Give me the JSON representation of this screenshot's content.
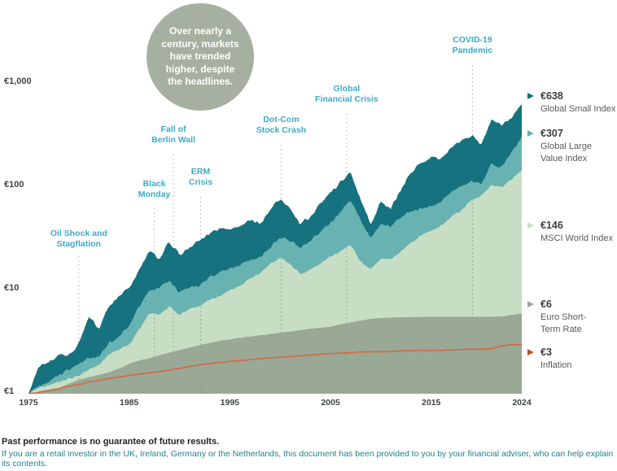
{
  "callout": {
    "text": "Over nearly a\ncentury, markets\nhave trended\nhigher, despite\nthe headlines.",
    "bg_color": "#a6b0a0"
  },
  "chart_data": {
    "type": "area",
    "scale": "log",
    "ylim": [
      1,
      1000
    ],
    "grid": false,
    "currency": "EUR",
    "years": {
      "start": 1975,
      "end": 2024
    },
    "y_ticks": [
      {
        "label": "€1",
        "value": 1
      },
      {
        "label": "€10",
        "value": 10
      },
      {
        "label": "€100",
        "value": 100
      },
      {
        "label": "€1,000",
        "value": 1000
      }
    ],
    "x_ticks": [
      {
        "label": "1975",
        "year": 1975
      },
      {
        "label": "1985",
        "year": 1985
      },
      {
        "label": "1995",
        "year": 1995
      },
      {
        "label": "2005",
        "year": 2005
      },
      {
        "label": "2015",
        "year": 2015
      },
      {
        "label": "2024",
        "year": 2024
      }
    ],
    "series": [
      {
        "name": "Global Small Index",
        "end_value": 638,
        "end_label": "€638",
        "kind": "area",
        "color": "#15727e",
        "values": [
          1.0,
          1.8,
          2.0,
          2.4,
          2.3,
          3.1,
          5.5,
          4.2,
          7.0,
          8.8,
          10.5,
          16,
          24,
          20,
          30,
          22,
          26,
          31,
          36,
          40,
          38,
          42,
          47,
          44,
          60,
          78,
          62,
          44,
          52,
          70,
          88,
          112,
          140,
          75,
          44,
          73,
          62,
          95,
          140,
          170,
          193,
          185,
          240,
          280,
          310,
          260,
          450,
          400,
          470,
          638
        ]
      },
      {
        "name": "Global Large Value Index",
        "end_value": 307,
        "end_label": "€307",
        "kind": "area",
        "color": "#68b2b2",
        "values": [
          1.0,
          1.2,
          1.3,
          1.5,
          1.7,
          1.95,
          2.2,
          2.3,
          3.1,
          3.6,
          4.5,
          7.0,
          10.0,
          10.5,
          12.6,
          9.5,
          10.5,
          11.2,
          13.5,
          15.2,
          16.0,
          17.5,
          20.0,
          21.0,
          26.0,
          33.0,
          30.0,
          26.0,
          30.0,
          37.0,
          45.0,
          58.0,
          75.0,
          48.0,
          33.0,
          44.0,
          42.0,
          51.0,
          58.0,
          62.0,
          65.0,
          73.0,
          90.0,
          103.0,
          115.0,
          108.0,
          168.0,
          158.0,
          215.0,
          307.0
        ]
      },
      {
        "name": "MSCI World Index",
        "end_value": 146,
        "end_label": "€146",
        "kind": "area",
        "color": "#c7dec5",
        "values": [
          1.0,
          1.15,
          1.2,
          1.3,
          1.4,
          1.5,
          1.7,
          1.9,
          2.4,
          2.7,
          3.0,
          4.2,
          6.0,
          5.8,
          7.0,
          5.8,
          6.6,
          7.0,
          8.2,
          8.8,
          10.0,
          11.0,
          13.0,
          14.5,
          18.0,
          21.0,
          18.0,
          14.5,
          16.0,
          18.0,
          21.0,
          24.0,
          28.0,
          19.0,
          16.0,
          20.0,
          20.0,
          24.0,
          29.0,
          34.0,
          38.0,
          42.0,
          52.0,
          60.0,
          75.0,
          83.0,
          105.0,
          100.0,
          120.0,
          146.0
        ]
      },
      {
        "name": "Euro Short-Term Rate",
        "end_value": 6,
        "end_label": "€6",
        "kind": "area",
        "color": "#9aa896",
        "values": [
          1.0,
          1.05,
          1.1,
          1.14,
          1.25,
          1.36,
          1.45,
          1.52,
          1.62,
          1.75,
          1.95,
          2.1,
          2.2,
          2.35,
          2.5,
          2.65,
          2.8,
          2.95,
          3.1,
          3.25,
          3.36,
          3.48,
          3.58,
          3.68,
          3.78,
          3.88,
          4.0,
          4.12,
          4.24,
          4.35,
          4.45,
          4.7,
          4.9,
          5.1,
          5.3,
          5.4,
          5.45,
          5.5,
          5.52,
          5.55,
          5.55,
          5.55,
          5.55,
          5.55,
          5.55,
          5.55,
          5.55,
          5.6,
          5.8,
          6.0
        ]
      },
      {
        "name": "Inflation",
        "end_value": 3,
        "end_label": "€3",
        "kind": "line",
        "color": "#d56844",
        "values": [
          1.0,
          1.05,
          1.09,
          1.13,
          1.18,
          1.23,
          1.29,
          1.35,
          1.4,
          1.45,
          1.5,
          1.55,
          1.59,
          1.64,
          1.7,
          1.76,
          1.83,
          1.9,
          1.96,
          2.01,
          2.06,
          2.1,
          2.14,
          2.18,
          2.21,
          2.25,
          2.29,
          2.33,
          2.37,
          2.41,
          2.44,
          2.47,
          2.5,
          2.53,
          2.54,
          2.55,
          2.57,
          2.6,
          2.62,
          2.63,
          2.62,
          2.63,
          2.65,
          2.68,
          2.7,
          2.7,
          2.72,
          2.9,
          2.98,
          3.0
        ]
      }
    ],
    "events": [
      {
        "label": "Oil Shock and\nStagflation",
        "year": 1980.0
      },
      {
        "label": "Black\nMonday",
        "year": 1987.5
      },
      {
        "label": "Fall of\nBerlin Wall",
        "year": 1989.4
      },
      {
        "label": "ERM\nCrisis",
        "year": 1992.1
      },
      {
        "label": "Dot-Com\nStock Crash",
        "year": 2000.1
      },
      {
        "label": "Global\nFinancial Crisis",
        "year": 2006.6
      },
      {
        "label": "COVID-19\nPandemic",
        "year": 2019.1
      }
    ],
    "event_label_color": "#3dabc7",
    "event_line_color": "#b7bdb1"
  },
  "legend": [
    {
      "value": "€638",
      "name": "Global Small Index",
      "color": "#15727e"
    },
    {
      "value": "€307",
      "name": "Global Large\nValue Index",
      "color": "#68b2b2"
    },
    {
      "value": "€146",
      "name": "MSCI World Index",
      "color": "#c7dec5"
    },
    {
      "value": "€6",
      "name": "Euro Short-\nTerm Rate",
      "color": "#9aa896"
    },
    {
      "value": "€3",
      "name": "Inflation",
      "color": "#bf4e2c"
    }
  ],
  "footer": {
    "line1": "Past performance is no guarantee of future results.",
    "line2": "If you are a retail investor in the UK, Ireland, Germany or the Netherlands, this document has been provided to you by your financial adviser, who can help explain its contents.",
    "line2_color": "#20808e"
  }
}
